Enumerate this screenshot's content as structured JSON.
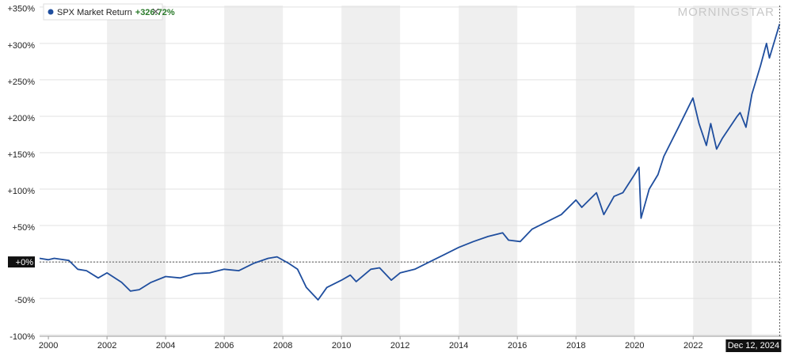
{
  "chart_data": {
    "type": "line",
    "brand": "MORNINGSTAR",
    "series": [
      {
        "name": "SPX Market Return",
        "legend_value": "+326.72%",
        "color": "#1f4e9e",
        "x": [
          1999.7,
          2000.0,
          2000.2,
          2000.7,
          2001.0,
          2001.3,
          2001.7,
          2002.0,
          2002.5,
          2002.8,
          2003.1,
          2003.5,
          2004.0,
          2004.5,
          2005.0,
          2005.5,
          2006.0,
          2006.5,
          2007.0,
          2007.5,
          2007.8,
          2008.2,
          2008.5,
          2008.8,
          2009.2,
          2009.5,
          2010.0,
          2010.3,
          2010.5,
          2011.0,
          2011.3,
          2011.7,
          2012.0,
          2012.5,
          2013.0,
          2013.5,
          2014.0,
          2014.5,
          2015.0,
          2015.5,
          2015.7,
          2016.1,
          2016.5,
          2017.0,
          2017.5,
          2018.0,
          2018.2,
          2018.7,
          2018.95,
          2019.3,
          2019.6,
          2020.0,
          2020.15,
          2020.22,
          2020.5,
          2020.8,
          2021.0,
          2021.5,
          2021.99,
          2022.2,
          2022.45,
          2022.6,
          2022.8,
          2023.0,
          2023.5,
          2023.6,
          2023.8,
          2024.0,
          2024.3,
          2024.5,
          2024.6,
          2024.95
        ],
        "values": [
          5,
          3,
          5,
          2,
          -10,
          -12,
          -22,
          -15,
          -28,
          -40,
          -38,
          -28,
          -20,
          -22,
          -16,
          -15,
          -10,
          -12,
          -2,
          5,
          7,
          -2,
          -10,
          -35,
          -52,
          -35,
          -25,
          -18,
          -27,
          -10,
          -8,
          -25,
          -15,
          -10,
          0,
          10,
          20,
          28,
          35,
          40,
          30,
          28,
          45,
          55,
          65,
          85,
          75,
          95,
          65,
          90,
          95,
          120,
          130,
          60,
          100,
          120,
          145,
          185,
          225,
          190,
          160,
          190,
          155,
          170,
          200,
          205,
          185,
          230,
          270,
          300,
          280,
          326.72
        ]
      }
    ],
    "xlim": [
      1999.7,
      2025.02
    ],
    "ylim": [
      -102,
      352
    ],
    "xticks": [
      2000,
      2002,
      2004,
      2006,
      2008,
      2010,
      2012,
      2014,
      2016,
      2018,
      2020,
      2022
    ],
    "yticks": [
      {
        "value": 350,
        "label": "+350%"
      },
      {
        "value": 300,
        "label": "+300%"
      },
      {
        "value": 250,
        "label": "+250%"
      },
      {
        "value": 200,
        "label": "+200%"
      },
      {
        "value": 150,
        "label": "+150%"
      },
      {
        "value": 100,
        "label": "+100%"
      },
      {
        "value": 50,
        "label": "+50%"
      },
      {
        "value": 0,
        "label": "+0%"
      },
      {
        "value": -50,
        "label": "-50%"
      },
      {
        "value": -100,
        "label": "-100%"
      }
    ],
    "reference_line": {
      "value": 0,
      "label": "+0%"
    },
    "cursor": {
      "value": 2024.95,
      "label": "Dec 12, 2024"
    },
    "grid": true
  }
}
